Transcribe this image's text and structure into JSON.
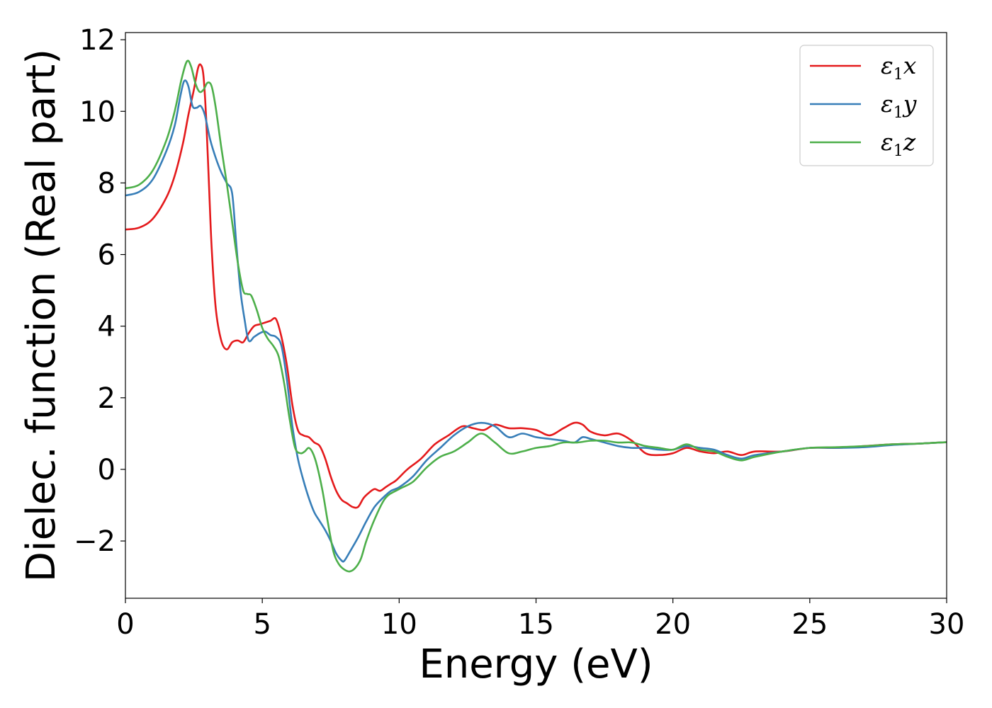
{
  "chart_data": {
    "type": "line",
    "title": "",
    "xlabel": "Energy (eV)",
    "ylabel": "Dielec. function (Real part)",
    "xlim": [
      0,
      30
    ],
    "ylim": [
      -3.6,
      12.2
    ],
    "xticks": [
      0,
      5,
      10,
      15,
      20,
      25,
      30
    ],
    "xtick_labels": [
      "0",
      "5",
      "10",
      "15",
      "20",
      "25",
      "30"
    ],
    "yticks": [
      -2,
      0,
      2,
      4,
      6,
      8,
      10,
      12
    ],
    "ytick_labels": [
      "−2",
      "0",
      "2",
      "4",
      "6",
      "8",
      "10",
      "12"
    ],
    "grid": false,
    "legend_position": "top-right",
    "series": [
      {
        "name": "ε1x",
        "legend_symbol": "ε",
        "legend_sub": "1",
        "legend_var": "x",
        "color": "#e41a1c",
        "x": [
          0,
          0.5,
          1,
          1.5,
          1.8,
          2.1,
          2.3,
          2.5,
          2.65,
          2.75,
          2.85,
          2.95,
          3.05,
          3.15,
          3.3,
          3.5,
          3.7,
          3.9,
          4.1,
          4.3,
          4.5,
          4.7,
          4.9,
          5.1,
          5.3,
          5.5,
          5.7,
          5.9,
          6.1,
          6.3,
          6.5,
          6.7,
          6.9,
          7.1,
          7.3,
          7.5,
          7.7,
          7.9,
          8.1,
          8.3,
          8.5,
          8.7,
          8.9,
          9.1,
          9.3,
          9.5,
          9.7,
          9.9,
          10.3,
          10.8,
          11.3,
          11.8,
          12.3,
          12.7,
          13.1,
          13.5,
          14,
          14.5,
          15,
          15.5,
          16,
          16.4,
          16.7,
          17,
          17.5,
          18,
          18.5,
          19,
          19.5,
          20,
          20.5,
          21,
          21.5,
          22,
          22.5,
          23,
          24,
          25,
          26,
          27,
          28,
          29,
          30
        ],
        "y": [
          6.7,
          6.75,
          7.0,
          7.6,
          8.2,
          9.1,
          9.9,
          10.6,
          11.2,
          11.3,
          11.0,
          9.8,
          8.0,
          6.2,
          4.5,
          3.6,
          3.35,
          3.55,
          3.6,
          3.55,
          3.8,
          4.0,
          4.05,
          4.1,
          4.15,
          4.2,
          3.7,
          2.9,
          1.8,
          1.1,
          0.95,
          0.9,
          0.75,
          0.65,
          0.3,
          -0.2,
          -0.6,
          -0.85,
          -0.95,
          -1.05,
          -1.05,
          -0.8,
          -0.65,
          -0.55,
          -0.6,
          -0.5,
          -0.4,
          -0.3,
          0.0,
          0.3,
          0.7,
          0.95,
          1.2,
          1.15,
          1.1,
          1.25,
          1.15,
          1.15,
          1.1,
          0.95,
          1.15,
          1.3,
          1.25,
          1.05,
          0.95,
          1.0,
          0.8,
          0.45,
          0.4,
          0.45,
          0.6,
          0.5,
          0.45,
          0.5,
          0.4,
          0.5,
          0.5,
          0.6,
          0.6,
          0.65,
          0.7,
          0.72,
          0.76
        ]
      },
      {
        "name": "ε1y",
        "legend_symbol": "ε",
        "legend_sub": "1",
        "legend_var": "y",
        "color": "#377eb8",
        "x": [
          0,
          0.5,
          1,
          1.5,
          1.8,
          2.0,
          2.15,
          2.3,
          2.45,
          2.6,
          2.75,
          2.9,
          3.1,
          3.3,
          3.5,
          3.7,
          3.9,
          4.05,
          4.2,
          4.35,
          4.5,
          4.7,
          4.9,
          5.1,
          5.3,
          5.5,
          5.7,
          5.9,
          6.1,
          6.3,
          6.5,
          6.7,
          6.9,
          7.1,
          7.3,
          7.5,
          7.7,
          7.9,
          8.0,
          8.2,
          8.5,
          8.8,
          9.1,
          9.4,
          9.7,
          10,
          10.5,
          11,
          11.5,
          12,
          12.5,
          13,
          13.5,
          14,
          14.5,
          15,
          15.5,
          16,
          16.4,
          16.7,
          17,
          17.5,
          18,
          18.5,
          19,
          19.5,
          20,
          20.5,
          21,
          21.5,
          22,
          22.5,
          23,
          24,
          25,
          26,
          27,
          28,
          29,
          30
        ],
        "y": [
          7.65,
          7.75,
          8.1,
          8.9,
          9.6,
          10.4,
          10.85,
          10.7,
          10.15,
          10.1,
          10.15,
          9.9,
          9.2,
          8.7,
          8.3,
          8.0,
          7.7,
          6.3,
          5.0,
          4.2,
          3.6,
          3.7,
          3.8,
          3.85,
          3.75,
          3.7,
          3.45,
          2.5,
          1.2,
          0.3,
          -0.3,
          -0.8,
          -1.2,
          -1.45,
          -1.7,
          -2.0,
          -2.35,
          -2.55,
          -2.55,
          -2.3,
          -1.9,
          -1.45,
          -1.05,
          -0.8,
          -0.6,
          -0.5,
          -0.2,
          0.25,
          0.6,
          0.95,
          1.2,
          1.3,
          1.2,
          0.9,
          1.0,
          0.9,
          0.85,
          0.8,
          0.75,
          0.9,
          0.85,
          0.75,
          0.65,
          0.6,
          0.6,
          0.55,
          0.55,
          0.65,
          0.6,
          0.55,
          0.4,
          0.3,
          0.4,
          0.5,
          0.6,
          0.6,
          0.62,
          0.68,
          0.72,
          0.76
        ]
      },
      {
        "name": "ε1z",
        "legend_symbol": "ε",
        "legend_sub": "1",
        "legend_var": "z",
        "color": "#4daf4a",
        "x": [
          0,
          0.5,
          1,
          1.5,
          1.8,
          2.05,
          2.25,
          2.4,
          2.55,
          2.7,
          2.85,
          3.0,
          3.15,
          3.3,
          3.5,
          3.7,
          3.9,
          4.1,
          4.3,
          4.45,
          4.6,
          4.8,
          5.0,
          5.2,
          5.4,
          5.6,
          5.8,
          6.0,
          6.2,
          6.4,
          6.55,
          6.7,
          6.85,
          7.0,
          7.2,
          7.4,
          7.6,
          7.8,
          8.0,
          8.2,
          8.4,
          8.6,
          8.8,
          9.1,
          9.5,
          10,
          10.5,
          11,
          11.5,
          12,
          12.5,
          13,
          13.5,
          14,
          14.5,
          15,
          15.5,
          16,
          16.5,
          17,
          17.5,
          18,
          18.5,
          19,
          19.5,
          20,
          20.5,
          21,
          21.5,
          22,
          22.5,
          23,
          24,
          25,
          26,
          27,
          28,
          29,
          30
        ],
        "y": [
          7.85,
          7.95,
          8.35,
          9.2,
          10.0,
          10.9,
          11.4,
          11.25,
          10.8,
          10.55,
          10.6,
          10.8,
          10.7,
          10.1,
          9.0,
          8.0,
          6.9,
          5.8,
          5.0,
          4.9,
          4.85,
          4.45,
          3.95,
          3.65,
          3.45,
          3.15,
          2.4,
          1.4,
          0.6,
          0.45,
          0.5,
          0.6,
          0.45,
          0.1,
          -0.6,
          -1.5,
          -2.3,
          -2.65,
          -2.8,
          -2.85,
          -2.75,
          -2.5,
          -2.0,
          -1.4,
          -0.8,
          -0.55,
          -0.35,
          0.05,
          0.35,
          0.5,
          0.75,
          1.0,
          0.75,
          0.45,
          0.5,
          0.6,
          0.65,
          0.75,
          0.75,
          0.8,
          0.8,
          0.75,
          0.75,
          0.65,
          0.6,
          0.55,
          0.7,
          0.55,
          0.5,
          0.35,
          0.25,
          0.35,
          0.5,
          0.6,
          0.62,
          0.65,
          0.7,
          0.72,
          0.76
        ]
      }
    ]
  }
}
